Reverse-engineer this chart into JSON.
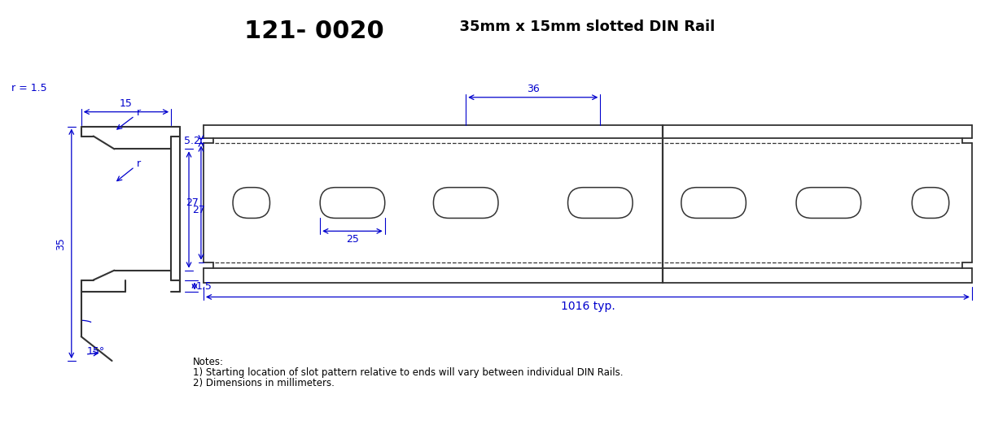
{
  "title_part1": "121- 0020",
  "title_part2": "  35mm x 15mm slotted DIN Rail",
  "dim_color": "#0000CD",
  "profile_color": "#333333",
  "bg_color": "#FFFFFF",
  "notes": [
    "Notes:",
    "1) Starting location of slot pattern relative to ends will vary between individual DIN Rails.",
    "2) Dimensions in millimeters."
  ],
  "dim_15": "15",
  "dim_r15": "r = 1.5",
  "dim_r": "r",
  "dim_35": "35",
  "dim_27": "27",
  "dim_15b": "1.5",
  "dim_15deg": "15°",
  "dim_36": "36",
  "dim_27b": "27",
  "dim_52": "5.2",
  "dim_25": "25",
  "dim_1016": "1016 typ."
}
